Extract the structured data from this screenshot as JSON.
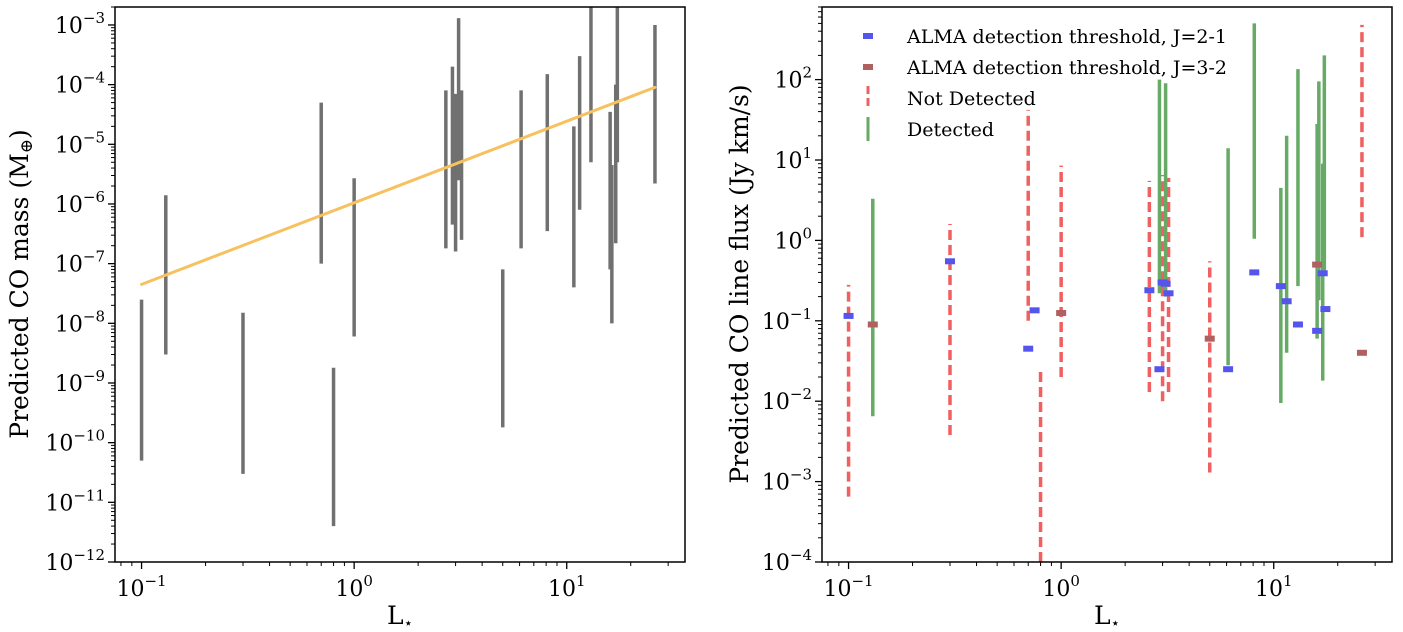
{
  "chart_data": [
    {
      "type": "errorbar",
      "xlabel": "L",
      "xlabel_sub": "⋆",
      "ylabel": "Predicted CO mass (M",
      "ylabel_sym": "⊕",
      "ylabel_end": ")",
      "xscale": "log",
      "yscale": "log",
      "xlim": [
        0.075,
        36
      ],
      "ylim": [
        1e-12,
        0.002
      ],
      "xticks": [
        {
          "v": 0.1,
          "b": "10",
          "e": "−1"
        },
        {
          "v": 1,
          "b": "10",
          "e": "0"
        },
        {
          "v": 10,
          "b": "10",
          "e": "1"
        }
      ],
      "yticks": [
        {
          "v": 1e-12,
          "b": "10",
          "e": "−12"
        },
        {
          "v": 1e-11,
          "b": "10",
          "e": "−11"
        },
        {
          "v": 1e-10,
          "b": "10",
          "e": "−10"
        },
        {
          "v": 1e-09,
          "b": "10",
          "e": "−9"
        },
        {
          "v": 1e-08,
          "b": "10",
          "e": "−8"
        },
        {
          "v": 1e-07,
          "b": "10",
          "e": "−7"
        },
        {
          "v": 1e-06,
          "b": "10",
          "e": "−6"
        },
        {
          "v": 1e-05,
          "b": "10",
          "e": "−5"
        },
        {
          "v": 0.0001,
          "b": "10",
          "e": "−4"
        },
        {
          "v": 0.001,
          "b": "10",
          "e": "−3"
        }
      ],
      "colors": {
        "bars": "#707070",
        "fit": "#f7c160"
      },
      "ranges": [
        {
          "x": 0.1,
          "lo": 5e-11,
          "hi": 2.5e-08
        },
        {
          "x": 0.13,
          "lo": 3e-09,
          "hi": 1.4e-06
        },
        {
          "x": 0.3,
          "lo": 3e-11,
          "hi": 1.5e-08
        },
        {
          "x": 0.7,
          "lo": 1e-07,
          "hi": 5e-05
        },
        {
          "x": 0.8,
          "lo": 4e-12,
          "hi": 1.8e-09
        },
        {
          "x": 1.0,
          "lo": 6e-09,
          "hi": 2.7e-06
        },
        {
          "x": 2.7,
          "lo": 1.8e-07,
          "hi": 8e-05
        },
        {
          "x": 2.9,
          "lo": 4.5e-07,
          "hi": 0.0002
        },
        {
          "x": 3.0,
          "lo": 1.6e-07,
          "hi": 7e-05
        },
        {
          "x": 3.1,
          "lo": 2.5e-06,
          "hi": 0.0013
        },
        {
          "x": 3.2,
          "lo": 2.5e-07,
          "hi": 8e-05
        },
        {
          "x": 5.0,
          "lo": 1.8e-10,
          "hi": 8e-08
        },
        {
          "x": 6.1,
          "lo": 1.8e-07,
          "hi": 8e-05
        },
        {
          "x": 8.1,
          "lo": 3.5e-07,
          "hi": 0.00015
        },
        {
          "x": 10.8,
          "lo": 4e-08,
          "hi": 2e-05
        },
        {
          "x": 11.5,
          "lo": 8e-07,
          "hi": 0.0003
        },
        {
          "x": 13.0,
          "lo": 5e-06,
          "hi": 0.002
        },
        {
          "x": 16.0,
          "lo": 8e-08,
          "hi": 3.5e-05
        },
        {
          "x": 16.3,
          "lo": 1e-08,
          "hi": 4.5e-06
        },
        {
          "x": 17.0,
          "lo": 2.2e-07,
          "hi": 0.0001
        },
        {
          "x": 17.3,
          "lo": 5e-06,
          "hi": 0.002
        },
        {
          "x": 26.0,
          "lo": 2.2e-06,
          "hi": 0.001
        }
      ],
      "fit_line": {
        "x": [
          0.1,
          26
        ],
        "y": [
          4.5e-08,
          9e-05
        ]
      }
    },
    {
      "type": "errorbar",
      "xlabel": "L",
      "xlabel_sub": "⋆",
      "ylabel": "Predicted CO line flux (Jy km/s)",
      "xscale": "log",
      "yscale": "log",
      "xlim": [
        0.075,
        36
      ],
      "ylim": [
        0.0001,
        800
      ],
      "xticks": [
        {
          "v": 0.1,
          "b": "10",
          "e": "−1"
        },
        {
          "v": 1,
          "b": "10",
          "e": "0"
        },
        {
          "v": 10,
          "b": "10",
          "e": "1"
        }
      ],
      "yticks": [
        {
          "v": 0.0001,
          "b": "10",
          "e": "−4"
        },
        {
          "v": 0.001,
          "b": "10",
          "e": "−3"
        },
        {
          "v": 0.01,
          "b": "10",
          "e": "−2"
        },
        {
          "v": 0.1,
          "b": "10",
          "e": "−1"
        },
        {
          "v": 1,
          "b": "10",
          "e": "0"
        },
        {
          "v": 10,
          "b": "10",
          "e": "1"
        },
        {
          "v": 100,
          "b": "10",
          "e": "2"
        }
      ],
      "legend_position": "top-left",
      "legend": [
        {
          "label": "ALMA detection threshold, J=2-1",
          "kind": "blue"
        },
        {
          "label": "ALMA detection threshold, J=3-2",
          "kind": "brown"
        },
        {
          "label": "Not Detected",
          "kind": "red"
        },
        {
          "label": "Detected",
          "kind": "green"
        }
      ],
      "colors": {
        "blue": "#5555ee",
        "brown": "#b06060",
        "red": "#f06060",
        "green": "#66aa66"
      },
      "not_detected": [
        {
          "x": 0.1,
          "lo": 0.00065,
          "hi": 0.28
        },
        {
          "x": 0.3,
          "lo": 0.0038,
          "hi": 1.6
        },
        {
          "x": 0.7,
          "lo": 0.1,
          "hi": 42
        },
        {
          "x": 0.8,
          "lo": 0.0001,
          "hi": 0.026
        },
        {
          "x": 1.0,
          "lo": 0.02,
          "hi": 8.5
        },
        {
          "x": 2.6,
          "lo": 0.013,
          "hi": 5.5
        },
        {
          "x": 3.0,
          "lo": 0.01,
          "hi": 6.5
        },
        {
          "x": 3.2,
          "lo": 0.013,
          "hi": 6.0
        },
        {
          "x": 5.0,
          "lo": 0.0013,
          "hi": 0.55
        },
        {
          "x": 26.0,
          "lo": 1.1,
          "hi": 480
        }
      ],
      "detected": [
        {
          "x": 0.13,
          "lo": 0.0065,
          "hi": 3.3
        },
        {
          "x": 2.9,
          "lo": 0.22,
          "hi": 100
        },
        {
          "x": 3.1,
          "lo": 0.2,
          "hi": 90
        },
        {
          "x": 6.1,
          "lo": 0.028,
          "hi": 14
        },
        {
          "x": 8.1,
          "lo": 1.05,
          "hi": 500
        },
        {
          "x": 10.8,
          "lo": 0.0095,
          "hi": 4.5
        },
        {
          "x": 11.5,
          "lo": 0.04,
          "hi": 20
        },
        {
          "x": 13.0,
          "lo": 0.27,
          "hi": 135
        },
        {
          "x": 16.0,
          "lo": 0.06,
          "hi": 28
        },
        {
          "x": 16.3,
          "lo": 0.18,
          "hi": 95
        },
        {
          "x": 17.0,
          "lo": 0.018,
          "hi": 9
        },
        {
          "x": 17.3,
          "lo": 0.4,
          "hi": 200
        }
      ],
      "threshold_j21": [
        {
          "x": 0.1,
          "y": 0.115
        },
        {
          "x": 0.3,
          "y": 0.55
        },
        {
          "x": 0.7,
          "y": 0.045
        },
        {
          "x": 0.75,
          "y": 0.135
        },
        {
          "x": 2.6,
          "y": 0.24
        },
        {
          "x": 2.9,
          "y": 0.025
        },
        {
          "x": 3.0,
          "y": 0.3
        },
        {
          "x": 3.1,
          "y": 0.29
        },
        {
          "x": 3.2,
          "y": 0.22
        },
        {
          "x": 6.1,
          "y": 0.025
        },
        {
          "x": 8.1,
          "y": 0.4
        },
        {
          "x": 10.8,
          "y": 0.27
        },
        {
          "x": 11.5,
          "y": 0.175
        },
        {
          "x": 13.0,
          "y": 0.09
        },
        {
          "x": 16.0,
          "y": 0.075
        },
        {
          "x": 17.0,
          "y": 0.39
        },
        {
          "x": 17.5,
          "y": 0.14
        }
      ],
      "threshold_j32": [
        {
          "x": 0.13,
          "y": 0.09
        },
        {
          "x": 1.0,
          "y": 0.125
        },
        {
          "x": 5.0,
          "y": 0.06
        },
        {
          "x": 16.0,
          "y": 0.5
        },
        {
          "x": 26.0,
          "y": 0.04
        }
      ]
    }
  ]
}
